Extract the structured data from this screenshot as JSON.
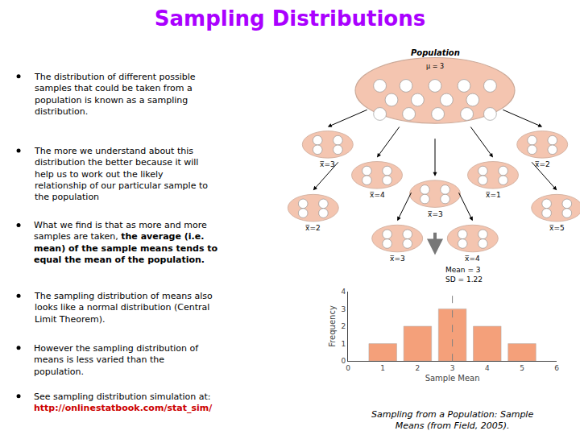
{
  "chart_data": {
    "type": "bar",
    "title": "Sampling Distributions",
    "title_color": "#aa00ff",
    "background": "#ffffff",
    "x": [
      1,
      2,
      3,
      4,
      5
    ],
    "values": [
      1,
      2,
      3,
      2,
      1
    ],
    "color": "#f4a07a",
    "xlabel": "Sample Mean",
    "ylabel": "Frequency",
    "xlim": [
      0,
      6
    ],
    "ylim": [
      0,
      4
    ],
    "xticks": [
      0,
      1,
      2,
      3,
      4,
      5,
      6
    ],
    "yticks": [
      0,
      1,
      2,
      3,
      4
    ],
    "grid": false,
    "mean_line": 3,
    "caption": "Sampling from a Population: Sample\nMeans (from Field, 2005).",
    "bullets": [
      "The distribution of different possible\nsamples that could be taken from a\npopulation is known as a sampling\ndistribution.",
      "The more we understand about this\ndistribution the better because it will\nhelp us to work out the likely\nrelationship of our particular sample to\nthe population",
      [
        {
          "text": "What we find is that as more and more\nsamples are taken, "
        },
        {
          "text": "the average (i.e.\nmean) of the sample means tends to\nequal the mean of the population.",
          "bold": true
        }
      ],
      "The sampling distribution of means also\nlooks like a normal distribution (Central\nLimit Theorem).",
      "However the sampling distribution of\nmeans is less varied than the\npopulation.",
      [
        {
          "text": "See sampling distribution simulation at:\n"
        },
        {
          "text": "http://onlinestatbook.com/stat_sim/",
          "bold": true,
          "color": "#cc0000"
        }
      ]
    ],
    "diagram": {
      "population": "Population",
      "population_mean": "μ = 3",
      "population_color": "#f4c5b0",
      "population_edge": "#ccaa99",
      "sample_labels": [
        "x̅=3",
        "x̅=4",
        "x̅=3",
        "x̅=1",
        "x̅=2",
        "x̅=2",
        "x̅=3",
        "x̅=4",
        "x̅=5"
      ],
      "summary": "Mean = 3\nSD = 1.22"
    }
  }
}
